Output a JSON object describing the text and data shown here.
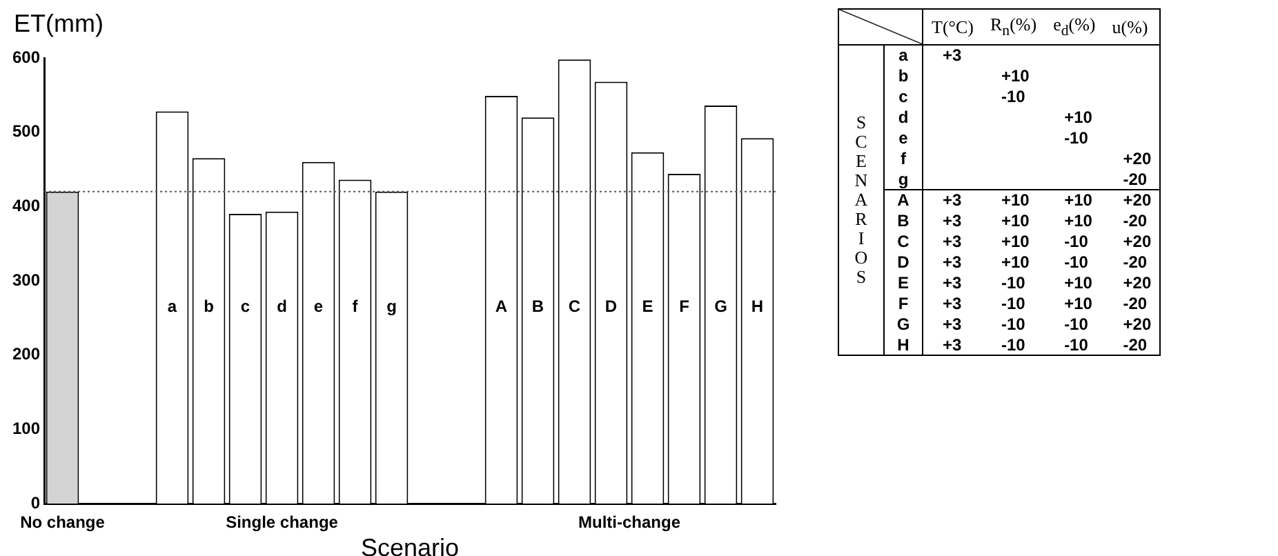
{
  "chart_data": [
    {
      "type": "bar",
      "ylabel": "ET(mm)",
      "xlabel": "Scenario",
      "categories": [
        null,
        null,
        null,
        "a",
        "b",
        "c",
        "d",
        "e",
        "f",
        "g",
        null,
        null,
        "A",
        "B",
        "C",
        "D",
        "E",
        "F",
        "G",
        "H"
      ],
      "values": [
        420,
        null,
        null,
        528,
        465,
        390,
        393,
        460,
        436,
        420,
        null,
        null,
        549,
        520,
        598,
        568,
        473,
        444,
        536,
        492
      ],
      "colors": [
        "#d4d4d4",
        null,
        null,
        "#ffffff",
        "#ffffff",
        "#ffffff",
        "#ffffff",
        "#ffffff",
        "#ffffff",
        "#ffffff",
        null,
        null,
        "#ffffff",
        "#ffffff",
        "#ffffff",
        "#ffffff",
        "#ffffff",
        "#ffffff",
        "#ffffff",
        "#ffffff"
      ],
      "ylim": [
        0,
        600
      ],
      "yticks": [
        0,
        100,
        200,
        300,
        400,
        500,
        600
      ],
      "grid": false,
      "legend": false,
      "ref_lines": [
        {
          "axis": "y",
          "value": 420,
          "line_style": "dotted",
          "color": "#555555"
        }
      ],
      "annotations": [
        "No change",
        "Single change",
        "Multi-change"
      ]
    },
    {
      "type": "other",
      "ylabel": "SCENARIOS",
      "categories": [
        "T(°C)",
        "R$_{n}$(%)",
        "e$_{d}$(%)",
        "u(%)"
      ],
      "y_categories": [
        "a",
        "b",
        "c",
        "d",
        "e",
        "f",
        "g",
        "A",
        "B",
        "C",
        "D",
        "E",
        "F",
        "G",
        "H"
      ],
      "cell_labels": [
        [
          "+3",
          null,
          null,
          null
        ],
        [
          null,
          "+10",
          null,
          null
        ],
        [
          null,
          "-10",
          null,
          null
        ],
        [
          null,
          null,
          "+10",
          null
        ],
        [
          null,
          null,
          "-10",
          null
        ],
        [
          null,
          null,
          null,
          "+20"
        ],
        [
          null,
          null,
          null,
          "-20"
        ],
        [
          "+3",
          "+10",
          "+10",
          "+20"
        ],
        [
          "+3",
          "+10",
          "+10",
          "-20"
        ],
        [
          "+3",
          "+10",
          "-10",
          "+20"
        ],
        [
          "+3",
          "+10",
          "-10",
          "-20"
        ],
        [
          "+3",
          "-10",
          "+10",
          "+20"
        ],
        [
          "+3",
          "-10",
          "+10",
          "-20"
        ],
        [
          "+3",
          "-10",
          "-10",
          "+20"
        ],
        [
          "+3",
          "-10",
          "-10",
          "-20"
        ]
      ]
    }
  ]
}
